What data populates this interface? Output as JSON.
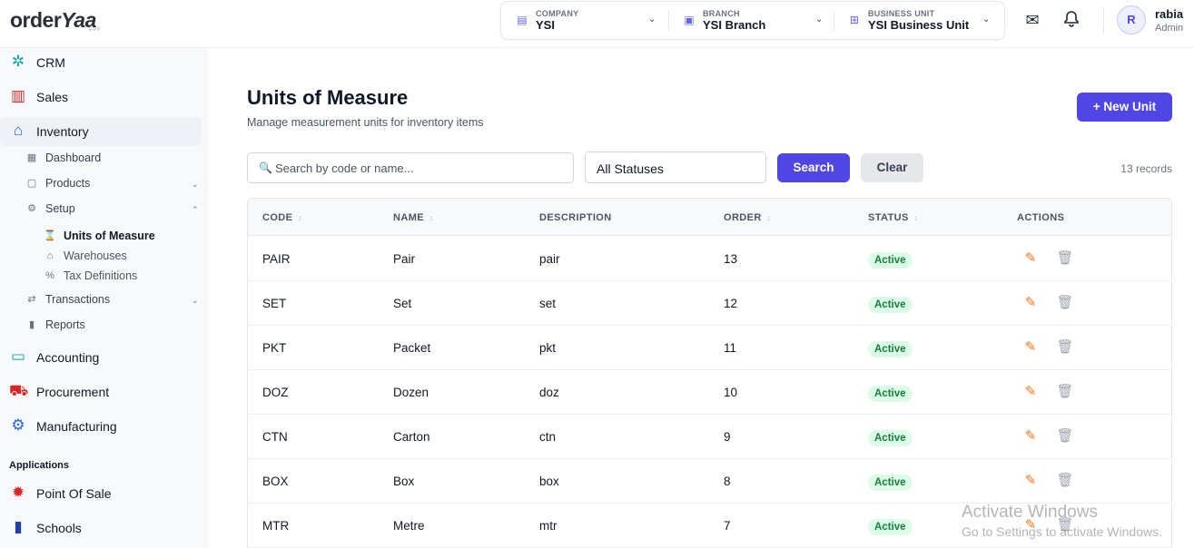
{
  "app": {
    "logo_text_a": "order",
    "logo_text_b": "Yaa",
    "logo_sub": "ERP"
  },
  "context": {
    "company": {
      "label": "COMPANY",
      "value": "YSI"
    },
    "branch": {
      "label": "BRANCH",
      "value": "YSI Branch"
    },
    "business_unit": {
      "label": "BUSINESS UNIT",
      "value": "YSI Business Unit"
    }
  },
  "header_icons": [
    "mail-icon",
    "bell-icon"
  ],
  "user": {
    "initial": "R",
    "name": "rabia",
    "role": "Admin"
  },
  "sidebar": {
    "modules": [
      {
        "label": "CRM",
        "icon": "crm-icon"
      },
      {
        "label": "Sales",
        "icon": "store-icon"
      },
      {
        "label": "Inventory",
        "icon": "warehouse-icon"
      }
    ],
    "inventory_items": [
      {
        "label": "Dashboard"
      },
      {
        "label": "Products"
      },
      {
        "label": "Setup"
      }
    ],
    "setup_items": [
      {
        "label": "Units of Measure"
      },
      {
        "label": "Warehouses"
      },
      {
        "label": "Tax Definitions"
      }
    ],
    "inventory_more": [
      {
        "label": "Transactions"
      },
      {
        "label": "Reports"
      }
    ],
    "other_modules": [
      {
        "label": "Accounting"
      },
      {
        "label": "Procurement"
      },
      {
        "label": "Manufacturing"
      }
    ],
    "applications_title": "Applications",
    "applications": [
      {
        "label": "Point Of Sale"
      },
      {
        "label": "Schools"
      }
    ]
  },
  "page": {
    "title": "Units of Measure",
    "subtitle": "Manage measurement units for inventory items",
    "new_button": "+ New Unit"
  },
  "filters": {
    "search_placeholder": "Search by code or name...",
    "status_value": "All Statuses",
    "search_button": "Search",
    "clear_button": "Clear",
    "records": "13 records"
  },
  "table": {
    "columns": [
      "CODE",
      "NAME",
      "DESCRIPTION",
      "ORDER",
      "STATUS",
      "ACTIONS"
    ],
    "rows": [
      {
        "code": "PAIR",
        "name": "Pair",
        "description": "pair",
        "order": "13",
        "status": "Active"
      },
      {
        "code": "SET",
        "name": "Set",
        "description": "set",
        "order": "12",
        "status": "Active"
      },
      {
        "code": "PKT",
        "name": "Packet",
        "description": "pkt",
        "order": "11",
        "status": "Active"
      },
      {
        "code": "DOZ",
        "name": "Dozen",
        "description": "doz",
        "order": "10",
        "status": "Active"
      },
      {
        "code": "CTN",
        "name": "Carton",
        "description": "ctn",
        "order": "9",
        "status": "Active"
      },
      {
        "code": "BOX",
        "name": "Box",
        "description": "box",
        "order": "8",
        "status": "Active"
      },
      {
        "code": "MTR",
        "name": "Metre",
        "description": "mtr",
        "order": "7",
        "status": "Active"
      }
    ]
  },
  "watermark": {
    "line1": "Activate Windows",
    "line2": "Go to Settings to activate Windows."
  },
  "colors": {
    "accent": "#4f46e5",
    "active_bg": "#dcfce7",
    "active_text": "#15803d",
    "edit": "#f97316"
  }
}
